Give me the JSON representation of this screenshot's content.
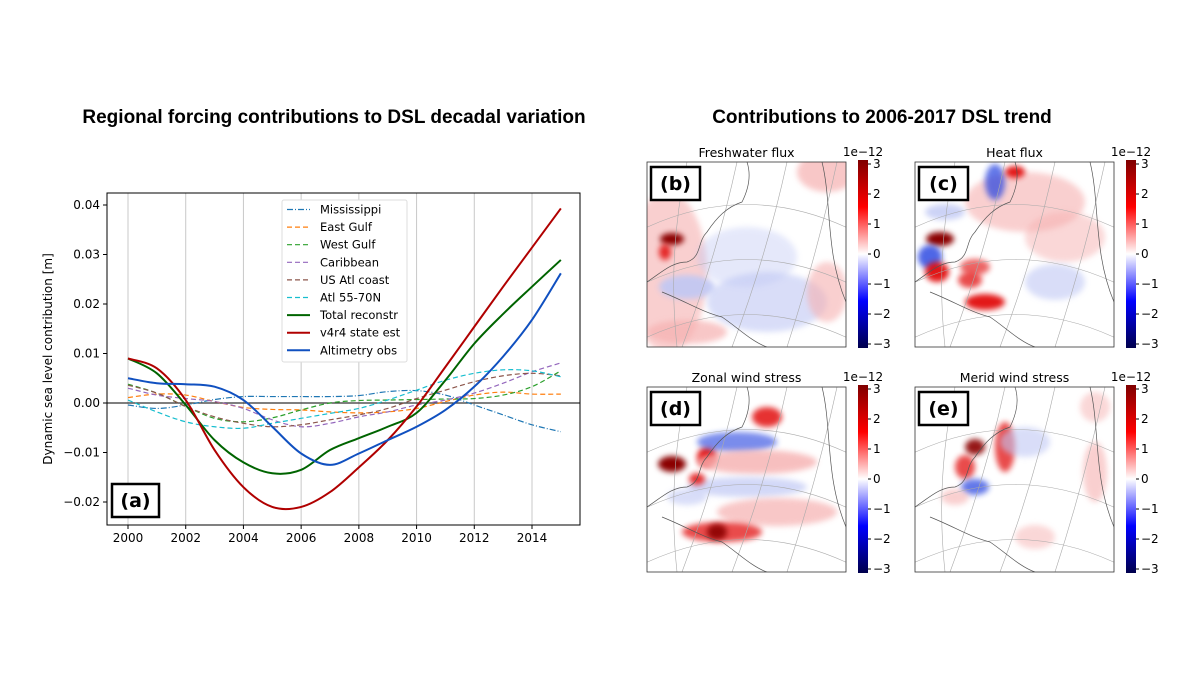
{
  "chart_data": [
    {
      "type": "line",
      "title": "Regional forcing contributions to DSL decadal variation",
      "panel_label": "(a)",
      "xlabel": "",
      "ylabel": "Dynamic sea level contribution [m]",
      "xlim": [
        1999.4,
        2015.6
      ],
      "ylim": [
        -0.0245,
        0.0425
      ],
      "xticks": [
        2000,
        2002,
        2004,
        2006,
        2008,
        2010,
        2012,
        2014
      ],
      "yticks": [
        0.04,
        0.03,
        0.02,
        0.01,
        0.0,
        -0.01,
        -0.02
      ],
      "ytick_labels": [
        "0.04",
        "0.03",
        "0.02",
        "0.01",
        "0.00",
        "−0.01",
        "−0.02"
      ],
      "grid": "vertical",
      "legend_position": "top-center",
      "x": [
        2000,
        2001,
        2002,
        2003,
        2004,
        2005,
        2006,
        2007,
        2008,
        2009,
        2010,
        2011,
        2012,
        2013,
        2014,
        2015
      ],
      "series": [
        {
          "name": "Mississippi",
          "color": "#1f77b4",
          "style": "dashdot",
          "values": [
            -0.0004,
            -0.0011,
            -0.0004,
            0.0007,
            0.0013,
            0.0013,
            0.0013,
            0.0013,
            0.0015,
            0.0023,
            0.0025,
            0.0016,
            -0.0004,
            -0.0024,
            -0.0044,
            -0.0058
          ]
        },
        {
          "name": "East Gulf",
          "color": "#ff7f0e",
          "style": "dashed",
          "values": [
            0.0011,
            0.0018,
            0.0016,
            0.0003,
            -0.0009,
            -0.0013,
            -0.0014,
            -0.0018,
            -0.002,
            -0.0018,
            -0.0011,
            0.0003,
            0.0016,
            0.0022,
            0.0018,
            0.0018
          ]
        },
        {
          "name": "West Gulf",
          "color": "#2ca02c",
          "style": "dashed",
          "values": [
            0.0038,
            0.002,
            -0.0007,
            -0.0031,
            -0.0038,
            -0.003,
            -0.0014,
            0.0,
            0.0005,
            0.0006,
            0.0007,
            0.0008,
            0.0009,
            0.0016,
            0.0033,
            0.0065
          ]
        },
        {
          "name": "Caribbean",
          "color": "#9467bd",
          "style": "dashed",
          "values": [
            0.003,
            0.0016,
            0.0009,
            0.0003,
            -0.0011,
            -0.0034,
            -0.0048,
            -0.0041,
            -0.0028,
            -0.0018,
            -0.0004,
            0.0006,
            0.002,
            0.004,
            0.0063,
            0.0081
          ]
        },
        {
          "name": "US Atl coast",
          "color": "#8c564b",
          "style": "dashed",
          "values": [
            0.0036,
            0.002,
            -0.0007,
            -0.0028,
            -0.0041,
            -0.0048,
            -0.0044,
            -0.0034,
            -0.0024,
            -0.0011,
            0.0009,
            0.0026,
            0.0043,
            0.0055,
            0.006,
            0.0055
          ]
        },
        {
          "name": "Atl 55-70N",
          "color": "#17becf",
          "style": "dashed",
          "values": [
            0.0006,
            -0.0018,
            -0.0038,
            -0.0048,
            -0.0051,
            -0.0041,
            -0.0031,
            -0.0021,
            -0.0011,
            0.0006,
            0.0026,
            0.0046,
            0.006,
            0.0067,
            0.0065,
            0.0053
          ]
        },
        {
          "name": "Total reconstr",
          "color": "#006400",
          "style": "solid",
          "values": [
            0.009,
            0.006,
            -0.0004,
            -0.0075,
            -0.012,
            -0.0142,
            -0.0135,
            -0.0095,
            -0.0071,
            -0.0048,
            -0.002,
            0.0046,
            0.012,
            0.018,
            0.0235,
            0.0289
          ]
        },
        {
          "name": "v4r4 state est",
          "color": "#b00000",
          "style": "solid",
          "values": [
            0.009,
            0.007,
            0.0006,
            -0.0095,
            -0.017,
            -0.021,
            -0.021,
            -0.018,
            -0.013,
            -0.0075,
            -0.0007,
            0.0073,
            0.0154,
            0.0235,
            0.0314,
            0.0393
          ]
        },
        {
          "name": "Altimetry obs",
          "color": "#1050c0",
          "style": "solid",
          "values": [
            0.005,
            0.004,
            0.0038,
            0.0033,
            0.0006,
            -0.0048,
            -0.0102,
            -0.0125,
            -0.0102,
            -0.0075,
            -0.0048,
            -0.0014,
            0.0033,
            0.0094,
            0.0168,
            0.0262
          ]
        }
      ]
    },
    {
      "type": "heatmap",
      "title": "Contributions to 2006-2017 DSL trend",
      "colormap": "seismic",
      "colorbar_scale": "1e−12",
      "colorbar_ticks": [
        "3",
        "2",
        "1",
        "0",
        "−1",
        "−2",
        "−3"
      ],
      "clim": [
        -3,
        3
      ],
      "panels": [
        {
          "label": "(b)",
          "title": "Freshwater flux"
        },
        {
          "label": "(c)",
          "title": "Heat flux"
        },
        {
          "label": "(d)",
          "title": "Zonal wind stress"
        },
        {
          "label": "(e)",
          "title": "Merid wind stress"
        }
      ]
    }
  ]
}
